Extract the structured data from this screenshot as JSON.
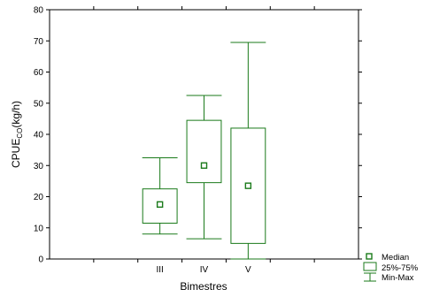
{
  "chart_data": {
    "type": "box",
    "title": "",
    "xlabel": "Bimestres",
    "ylabel_main": "CPUE",
    "ylabel_sub": "CO",
    "ylabel_tail": "(kg/h)",
    "ylim": [
      0,
      80
    ],
    "yticks": [
      0,
      10,
      20,
      30,
      40,
      50,
      60,
      70,
      80
    ],
    "grid": false,
    "legend_position": "bottom-right",
    "color": "#1a7a1a",
    "categories": [
      "III",
      "IV",
      "V"
    ],
    "boxes": [
      {
        "category": "III",
        "min": 8,
        "q1": 11.5,
        "median": 17.5,
        "q3": 22.5,
        "max": 32.5
      },
      {
        "category": "IV",
        "min": 6.5,
        "q1": 24.5,
        "median": 30,
        "q3": 44.5,
        "max": 52.5
      },
      {
        "category": "V",
        "min": 0,
        "q1": 5,
        "median": 23.5,
        "q3": 42,
        "max": 69.5
      }
    ],
    "legend": [
      {
        "key": "median",
        "label": "Median"
      },
      {
        "key": "box",
        "label": "25%-75%"
      },
      {
        "key": "whisker",
        "label": "Min-Max"
      }
    ]
  }
}
